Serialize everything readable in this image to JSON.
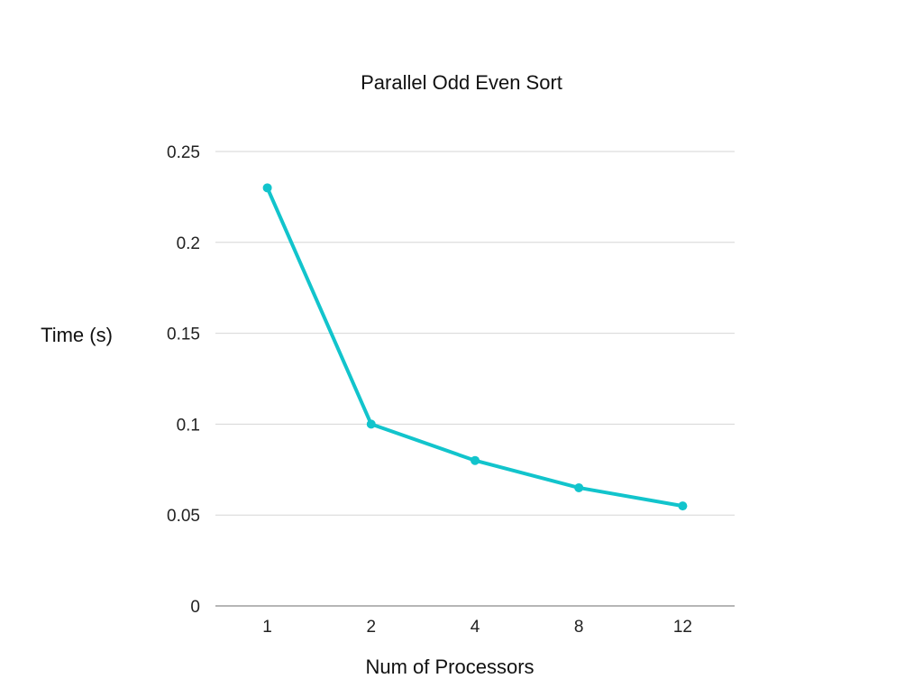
{
  "chart_data": {
    "type": "line",
    "title": "Parallel Odd Even Sort",
    "xlabel": "Num of Processors",
    "ylabel": "Time (s)",
    "categories": [
      "1",
      "2",
      "4",
      "8",
      "12"
    ],
    "series": [
      {
        "values": [
          0.23,
          0.1,
          0.08,
          0.065,
          0.055
        ],
        "color": "#12C4CC"
      }
    ],
    "ylim": [
      0,
      0.25
    ],
    "yticks": [
      0,
      0.05,
      0.1,
      0.15,
      0.2,
      0.25
    ],
    "ytick_labels": [
      "0",
      "0.05",
      "0.1",
      "0.15",
      "0.2",
      "0.25"
    ],
    "grid": true,
    "legend": "none"
  }
}
